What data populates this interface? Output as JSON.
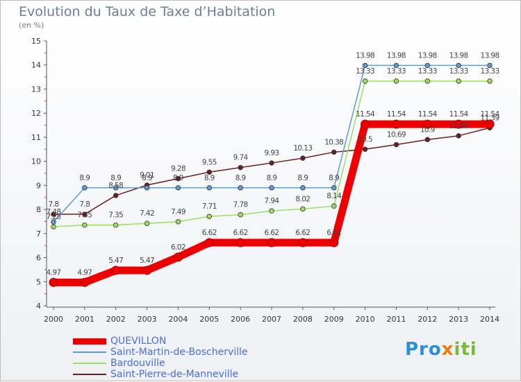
{
  "chart_data": {
    "type": "line",
    "title": "Evolution du Taux de Taxe d’Habitation",
    "subtitle": "(en %)",
    "categories": [
      "2000",
      "2001",
      "2002",
      "2003",
      "2004",
      "2005",
      "2006",
      "2007",
      "2008",
      "2009",
      "2010",
      "2011",
      "2012",
      "2013",
      "2014"
    ],
    "ylim": [
      4,
      15
    ],
    "yticks": [
      "4",
      "5",
      "6",
      "7",
      "8",
      "9",
      "10",
      "11",
      "12",
      "13",
      "14",
      "15"
    ],
    "grid": false,
    "legend_position": "bottom-left",
    "series": [
      {
        "name": "QUEVILLON",
        "color": "#ee0000",
        "thick": true,
        "values": [
          4.97,
          4.97,
          5.47,
          5.47,
          6.02,
          6.62,
          6.62,
          6.62,
          6.62,
          6.62,
          11.54,
          11.54,
          11.54,
          11.54,
          11.54
        ]
      },
      {
        "name": "Saint-Martin-de-Boscherville",
        "color": "#5b9bd5",
        "thick": false,
        "values": [
          7.48,
          8.9,
          8.9,
          8.9,
          8.9,
          8.9,
          8.9,
          8.9,
          8.9,
          8.9,
          13.98,
          13.98,
          13.98,
          13.98,
          13.98
        ]
      },
      {
        "name": "Bardouville",
        "color": "#99e05c",
        "thick": false,
        "values": [
          7.28,
          7.35,
          7.35,
          7.42,
          7.49,
          7.71,
          7.78,
          7.94,
          8.02,
          8.14,
          13.33,
          13.33,
          13.33,
          13.33,
          13.33
        ]
      },
      {
        "name": "Saint-Pierre-de-Manneville",
        "color": "#6d1d1d",
        "thick": false,
        "values": [
          7.8,
          7.8,
          8.58,
          9.01,
          9.28,
          9.55,
          9.74,
          9.93,
          10.13,
          10.38,
          10.5,
          10.69,
          10.9,
          11.06,
          11.39
        ]
      }
    ]
  },
  "logo": {
    "text_pro": "Pro",
    "text_x": "x",
    "text_iti": "iti"
  }
}
